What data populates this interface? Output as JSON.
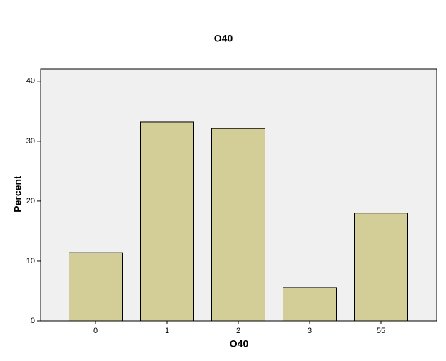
{
  "chart_data": {
    "type": "bar",
    "title": "O40",
    "x_label": "O40",
    "y_label": "Percent",
    "categories": [
      "0",
      "1",
      "2",
      "3",
      "55"
    ],
    "values": [
      11.4,
      33.2,
      32.1,
      5.6,
      18.0
    ],
    "color": "#d3ce97",
    "ylim": [
      0,
      42
    ],
    "yticks": [
      0,
      10,
      20,
      30,
      40
    ]
  }
}
